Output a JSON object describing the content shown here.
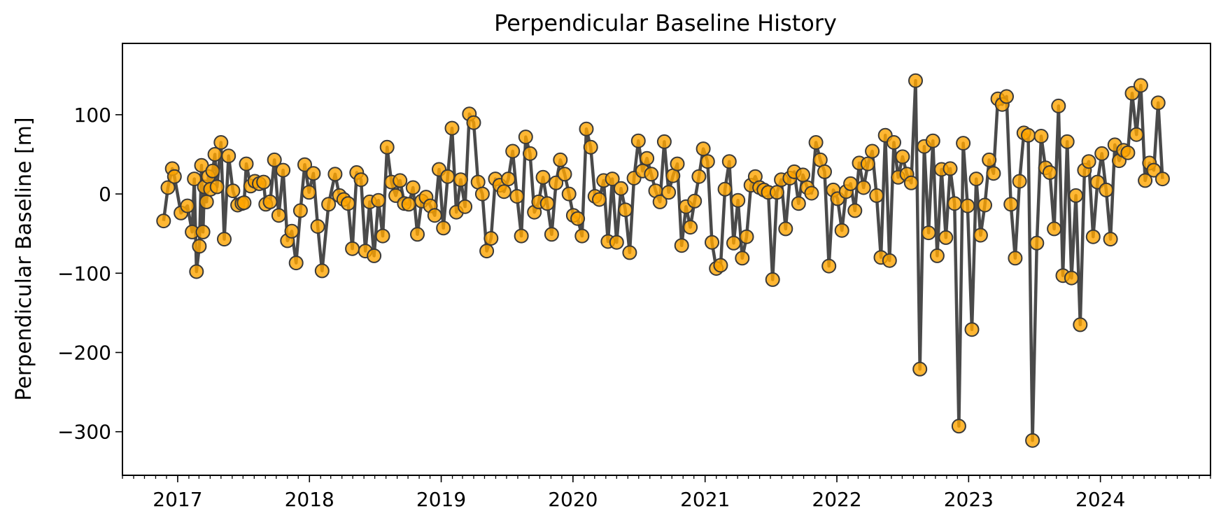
{
  "chart_data": {
    "type": "line",
    "title": "Perpendicular Baseline History",
    "xlabel": "",
    "ylabel": "Perpendicular Baseline [m]",
    "x_range": [
      "2016-08-01",
      "2024-11-01"
    ],
    "ylim": [
      -355,
      190
    ],
    "x_ticks": [
      {
        "date": "2017-01-01",
        "label": "2017"
      },
      {
        "date": "2018-01-01",
        "label": "2018"
      },
      {
        "date": "2019-01-01",
        "label": "2019"
      },
      {
        "date": "2020-01-01",
        "label": "2020"
      },
      {
        "date": "2021-01-01",
        "label": "2021"
      },
      {
        "date": "2022-01-01",
        "label": "2022"
      },
      {
        "date": "2023-01-01",
        "label": "2023"
      },
      {
        "date": "2024-01-01",
        "label": "2024"
      }
    ],
    "y_ticks": [
      {
        "value": 100,
        "label": "100"
      },
      {
        "value": 0,
        "label": "0"
      },
      {
        "value": -100,
        "label": "−100"
      },
      {
        "value": -200,
        "label": "−200"
      },
      {
        "value": -300,
        "label": "−300"
      }
    ],
    "minor_x_ticks": "monthly",
    "grid": false,
    "line_color": "#4a4a4a",
    "marker_fill": "#ffa500",
    "marker_edge": "#3a3a3a",
    "series": [
      {
        "points": [
          [
            "2016-11-23",
            -34
          ],
          [
            "2016-12-05",
            8
          ],
          [
            "2016-12-17",
            32
          ],
          [
            "2016-12-23",
            22
          ],
          [
            "2017-01-10",
            -24
          ],
          [
            "2017-01-28",
            -15
          ],
          [
            "2017-02-10",
            -48
          ],
          [
            "2017-02-16",
            19
          ],
          [
            "2017-02-22",
            -98
          ],
          [
            "2017-03-02",
            -66
          ],
          [
            "2017-03-08",
            36
          ],
          [
            "2017-03-12",
            -48
          ],
          [
            "2017-03-16",
            9
          ],
          [
            "2017-03-22",
            -10
          ],
          [
            "2017-03-27",
            22
          ],
          [
            "2017-04-02",
            6
          ],
          [
            "2017-04-08",
            29
          ],
          [
            "2017-04-14",
            50
          ],
          [
            "2017-04-20",
            9
          ],
          [
            "2017-05-01",
            65
          ],
          [
            "2017-05-10",
            -57
          ],
          [
            "2017-05-22",
            48
          ],
          [
            "2017-06-03",
            4
          ],
          [
            "2017-06-16",
            -14
          ],
          [
            "2017-06-28",
            -12
          ],
          [
            "2017-07-04",
            -11
          ],
          [
            "2017-07-10",
            38
          ],
          [
            "2017-07-22",
            10
          ],
          [
            "2017-08-03",
            16
          ],
          [
            "2017-08-15",
            13
          ],
          [
            "2017-08-27",
            15
          ],
          [
            "2017-09-02",
            -13
          ],
          [
            "2017-09-14",
            -10
          ],
          [
            "2017-09-26",
            43
          ],
          [
            "2017-10-08",
            -27
          ],
          [
            "2017-10-20",
            30
          ],
          [
            "2017-11-01",
            -59
          ],
          [
            "2017-11-13",
            -47
          ],
          [
            "2017-11-25",
            -87
          ],
          [
            "2017-12-07",
            -21
          ],
          [
            "2017-12-19",
            37
          ],
          [
            "2017-12-31",
            2
          ],
          [
            "2018-01-12",
            26
          ],
          [
            "2018-01-24",
            -41
          ],
          [
            "2018-02-05",
            -97
          ],
          [
            "2018-02-23",
            -13
          ],
          [
            "2018-03-13",
            25
          ],
          [
            "2018-03-25",
            -2
          ],
          [
            "2018-04-06",
            -7
          ],
          [
            "2018-04-18",
            -12
          ],
          [
            "2018-04-30",
            -69
          ],
          [
            "2018-05-12",
            27
          ],
          [
            "2018-05-24",
            18
          ],
          [
            "2018-06-05",
            -72
          ],
          [
            "2018-06-17",
            -10
          ],
          [
            "2018-06-29",
            -78
          ],
          [
            "2018-07-11",
            -8
          ],
          [
            "2018-07-23",
            -53
          ],
          [
            "2018-08-04",
            59
          ],
          [
            "2018-08-16",
            15
          ],
          [
            "2018-08-28",
            -2
          ],
          [
            "2018-09-09",
            17
          ],
          [
            "2018-09-21",
            -12
          ],
          [
            "2018-10-03",
            -13
          ],
          [
            "2018-10-15",
            8
          ],
          [
            "2018-10-27",
            -51
          ],
          [
            "2018-11-08",
            -9
          ],
          [
            "2018-11-20",
            -4
          ],
          [
            "2018-12-02",
            -15
          ],
          [
            "2018-12-14",
            -27
          ],
          [
            "2018-12-26",
            31
          ],
          [
            "2019-01-07",
            -43
          ],
          [
            "2019-01-19",
            22
          ],
          [
            "2019-01-31",
            83
          ],
          [
            "2019-02-12",
            -23
          ],
          [
            "2019-02-24",
            18
          ],
          [
            "2019-03-08",
            -16
          ],
          [
            "2019-03-20",
            101
          ],
          [
            "2019-04-01",
            90
          ],
          [
            "2019-04-13",
            15
          ],
          [
            "2019-04-25",
            0
          ],
          [
            "2019-05-07",
            -72
          ],
          [
            "2019-05-19",
            -56
          ],
          [
            "2019-05-31",
            19
          ],
          [
            "2019-06-12",
            11
          ],
          [
            "2019-06-24",
            3
          ],
          [
            "2019-07-06",
            19
          ],
          [
            "2019-07-18",
            54
          ],
          [
            "2019-07-30",
            -3
          ],
          [
            "2019-08-11",
            -53
          ],
          [
            "2019-08-23",
            72
          ],
          [
            "2019-09-04",
            51
          ],
          [
            "2019-09-16",
            -23
          ],
          [
            "2019-09-28",
            -10
          ],
          [
            "2019-10-10",
            21
          ],
          [
            "2019-10-22",
            -12
          ],
          [
            "2019-11-03",
            -51
          ],
          [
            "2019-11-15",
            14
          ],
          [
            "2019-11-27",
            43
          ],
          [
            "2019-12-09",
            25
          ],
          [
            "2019-12-21",
            0
          ],
          [
            "2020-01-02",
            -27
          ],
          [
            "2020-01-14",
            -31
          ],
          [
            "2020-01-26",
            -53
          ],
          [
            "2020-02-07",
            82
          ],
          [
            "2020-02-19",
            59
          ],
          [
            "2020-03-02",
            -3
          ],
          [
            "2020-03-14",
            -7
          ],
          [
            "2020-03-26",
            17
          ],
          [
            "2020-04-07",
            -60
          ],
          [
            "2020-04-19",
            19
          ],
          [
            "2020-05-01",
            -61
          ],
          [
            "2020-05-13",
            7
          ],
          [
            "2020-05-25",
            -20
          ],
          [
            "2020-06-06",
            -74
          ],
          [
            "2020-06-18",
            20
          ],
          [
            "2020-06-30",
            67
          ],
          [
            "2020-07-12",
            29
          ],
          [
            "2020-07-24",
            45
          ],
          [
            "2020-08-05",
            25
          ],
          [
            "2020-08-17",
            4
          ],
          [
            "2020-08-29",
            -10
          ],
          [
            "2020-09-10",
            66
          ],
          [
            "2020-09-22",
            2
          ],
          [
            "2020-10-04",
            23
          ],
          [
            "2020-10-16",
            38
          ],
          [
            "2020-10-28",
            -65
          ],
          [
            "2020-11-09",
            -16
          ],
          [
            "2020-11-21",
            -42
          ],
          [
            "2020-12-03",
            -9
          ],
          [
            "2020-12-15",
            22
          ],
          [
            "2020-12-27",
            57
          ],
          [
            "2021-01-08",
            41
          ],
          [
            "2021-01-20",
            -61
          ],
          [
            "2021-02-01",
            -94
          ],
          [
            "2021-02-13",
            -90
          ],
          [
            "2021-02-25",
            6
          ],
          [
            "2021-03-09",
            41
          ],
          [
            "2021-03-21",
            -62
          ],
          [
            "2021-04-02",
            -8
          ],
          [
            "2021-04-14",
            -81
          ],
          [
            "2021-04-26",
            -54
          ],
          [
            "2021-05-08",
            11
          ],
          [
            "2021-05-20",
            22
          ],
          [
            "2021-06-01",
            8
          ],
          [
            "2021-06-13",
            5
          ],
          [
            "2021-06-25",
            2
          ],
          [
            "2021-07-07",
            -108
          ],
          [
            "2021-07-19",
            2
          ],
          [
            "2021-07-31",
            18
          ],
          [
            "2021-08-12",
            -44
          ],
          [
            "2021-08-24",
            20
          ],
          [
            "2021-09-05",
            28
          ],
          [
            "2021-09-17",
            -12
          ],
          [
            "2021-09-29",
            24
          ],
          [
            "2021-10-11",
            8
          ],
          [
            "2021-10-23",
            1
          ],
          [
            "2021-11-04",
            65
          ],
          [
            "2021-11-16",
            43
          ],
          [
            "2021-11-28",
            28
          ],
          [
            "2021-12-10",
            -91
          ],
          [
            "2021-12-22",
            5
          ],
          [
            "2022-01-03",
            -6
          ],
          [
            "2022-01-15",
            -46
          ],
          [
            "2022-01-27",
            3
          ],
          [
            "2022-02-08",
            13
          ],
          [
            "2022-02-20",
            -21
          ],
          [
            "2022-03-04",
            39
          ],
          [
            "2022-03-16",
            8
          ],
          [
            "2022-03-28",
            38
          ],
          [
            "2022-04-09",
            54
          ],
          [
            "2022-04-21",
            -2
          ],
          [
            "2022-05-03",
            -80
          ],
          [
            "2022-05-15",
            74
          ],
          [
            "2022-05-27",
            -84
          ],
          [
            "2022-06-08",
            65
          ],
          [
            "2022-06-20",
            21
          ],
          [
            "2022-07-02",
            47
          ],
          [
            "2022-07-14",
            25
          ],
          [
            "2022-07-26",
            14
          ],
          [
            "2022-08-07",
            143
          ],
          [
            "2022-08-19",
            -221
          ],
          [
            "2022-08-31",
            60
          ],
          [
            "2022-09-12",
            -49
          ],
          [
            "2022-09-24",
            67
          ],
          [
            "2022-10-06",
            -78
          ],
          [
            "2022-10-18",
            31
          ],
          [
            "2022-10-30",
            -55
          ],
          [
            "2022-11-11",
            32
          ],
          [
            "2022-11-23",
            -12
          ],
          [
            "2022-12-05",
            -293
          ],
          [
            "2022-12-17",
            64
          ],
          [
            "2022-12-29",
            -15
          ],
          [
            "2023-01-10",
            -171
          ],
          [
            "2023-01-22",
            19
          ],
          [
            "2023-02-03",
            -52
          ],
          [
            "2023-02-15",
            -14
          ],
          [
            "2023-02-27",
            43
          ],
          [
            "2023-03-11",
            26
          ],
          [
            "2023-03-23",
            120
          ],
          [
            "2023-04-04",
            113
          ],
          [
            "2023-04-16",
            123
          ],
          [
            "2023-04-28",
            -13
          ],
          [
            "2023-05-10",
            -81
          ],
          [
            "2023-05-22",
            16
          ],
          [
            "2023-06-03",
            77
          ],
          [
            "2023-06-15",
            74
          ],
          [
            "2023-06-27",
            -311
          ],
          [
            "2023-07-09",
            -62
          ],
          [
            "2023-07-21",
            73
          ],
          [
            "2023-08-02",
            33
          ],
          [
            "2023-08-14",
            27
          ],
          [
            "2023-08-26",
            -44
          ],
          [
            "2023-09-07",
            111
          ],
          [
            "2023-09-19",
            -103
          ],
          [
            "2023-10-01",
            66
          ],
          [
            "2023-10-13",
            -106
          ],
          [
            "2023-10-25",
            -2
          ],
          [
            "2023-11-06",
            -165
          ],
          [
            "2023-11-18",
            30
          ],
          [
            "2023-11-30",
            41
          ],
          [
            "2023-12-12",
            -54
          ],
          [
            "2023-12-24",
            15
          ],
          [
            "2024-01-05",
            51
          ],
          [
            "2024-01-17",
            5
          ],
          [
            "2024-01-29",
            -57
          ],
          [
            "2024-02-10",
            62
          ],
          [
            "2024-02-22",
            42
          ],
          [
            "2024-03-05",
            55
          ],
          [
            "2024-03-17",
            52
          ],
          [
            "2024-03-29",
            127
          ],
          [
            "2024-04-10",
            75
          ],
          [
            "2024-04-22",
            137
          ],
          [
            "2024-05-04",
            17
          ],
          [
            "2024-05-16",
            39
          ],
          [
            "2024-05-28",
            30
          ],
          [
            "2024-06-09",
            115
          ],
          [
            "2024-06-21",
            19
          ]
        ]
      }
    ]
  }
}
